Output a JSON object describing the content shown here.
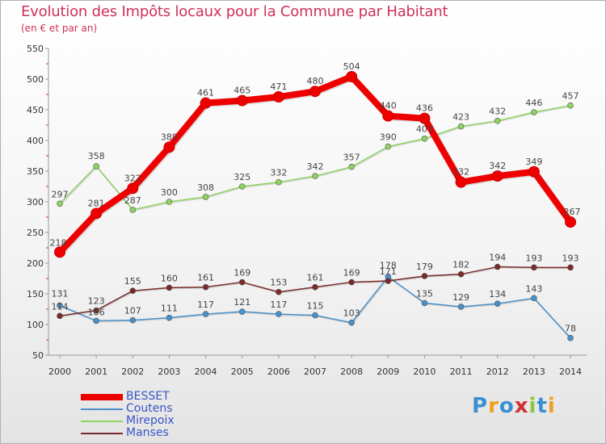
{
  "header": {
    "title": "Evolution des Impôts locaux pour la Commune par Habitant",
    "subtitle": "(en € et par an)"
  },
  "logo": {
    "text": "Proxiti"
  },
  "chart_data": {
    "type": "line",
    "title": "Evolution des Impôts locaux pour la Commune par Habitant",
    "subtitle": "(en € et par an)",
    "xlabel": "",
    "ylabel": "",
    "ylim": [
      50,
      550
    ],
    "yticks": [
      50,
      100,
      150,
      200,
      250,
      300,
      350,
      400,
      450,
      500,
      550
    ],
    "grid": false,
    "legend_position": "bottom-left",
    "x": [
      "2000",
      "2001",
      "2002",
      "2003",
      "2004",
      "2005",
      "2006",
      "2007",
      "2008",
      "2009",
      "2010",
      "2011",
      "2012",
      "2013",
      "2014"
    ],
    "series": [
      {
        "name": "BESSET",
        "color": "#ee0000",
        "values": [
          218,
          281,
          322,
          389,
          461,
          465,
          471,
          480,
          504,
          440,
          436,
          332,
          342,
          349,
          267
        ]
      },
      {
        "name": "Coutens",
        "color": "#4a90c8",
        "values": [
          131,
          106,
          107,
          111,
          117,
          121,
          117,
          115,
          103,
          178,
          135,
          129,
          134,
          143,
          78
        ]
      },
      {
        "name": "Mirepoix",
        "color": "#8dd35f",
        "values": [
          297,
          358,
          287,
          300,
          308,
          325,
          332,
          342,
          357,
          390,
          403,
          423,
          432,
          446,
          457
        ]
      },
      {
        "name": "Manses",
        "color": "#7a2a2a",
        "values": [
          114,
          123,
          155,
          160,
          161,
          169,
          153,
          161,
          169,
          171,
          179,
          182,
          194,
          193,
          193
        ]
      }
    ]
  }
}
